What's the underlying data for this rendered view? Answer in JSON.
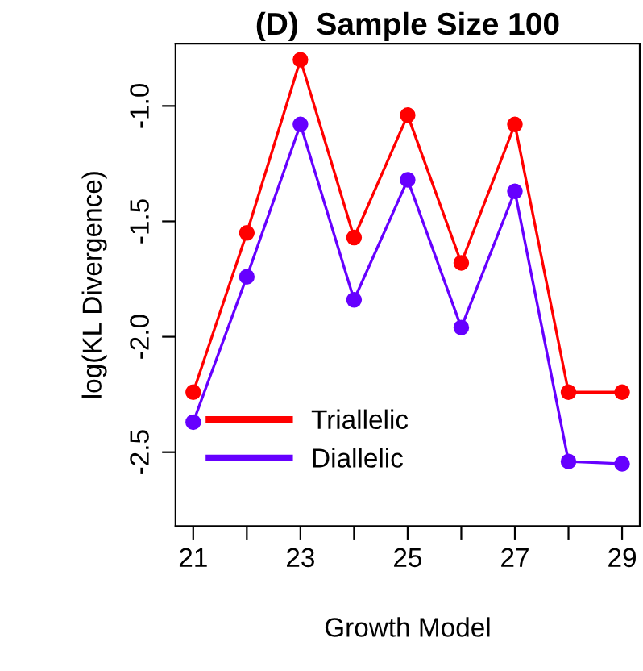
{
  "chart_data": {
    "type": "line",
    "title": "(D)  Sample Size 100",
    "xlabel": "Growth Model",
    "ylabel": "log(KL Divergence)",
    "x": [
      21,
      22,
      23,
      24,
      25,
      26,
      27,
      28,
      29
    ],
    "series": [
      {
        "name": "Triallelic",
        "color": "#ff0000",
        "values": [
          -2.24,
          -1.55,
          -0.8,
          -1.57,
          -1.04,
          -1.68,
          -1.08,
          -2.24,
          -2.24
        ]
      },
      {
        "name": "Diallelic",
        "color": "#6600ff",
        "values": [
          -2.37,
          -1.74,
          -1.08,
          -1.84,
          -1.32,
          -1.96,
          -1.37,
          -2.54,
          -2.55
        ]
      }
    ],
    "xlim": [
      20.67,
      29.33
    ],
    "ylim": [
      -2.82,
      -0.73
    ],
    "xticks": [
      21,
      {
        "value": 22,
        "label": null
      },
      23,
      {
        "value": 24,
        "label": null
      },
      25,
      {
        "value": 26,
        "label": null
      },
      27,
      {
        "value": 28,
        "label": null
      },
      29
    ],
    "yticks": [
      {
        "value": -1.0,
        "label": "-1.0"
      },
      -1.5,
      {
        "value": -2.0,
        "label": "-2.0"
      },
      -2.5
    ],
    "marker": "circle",
    "line_style": "solid",
    "grid": false,
    "legend": "bottom left"
  }
}
